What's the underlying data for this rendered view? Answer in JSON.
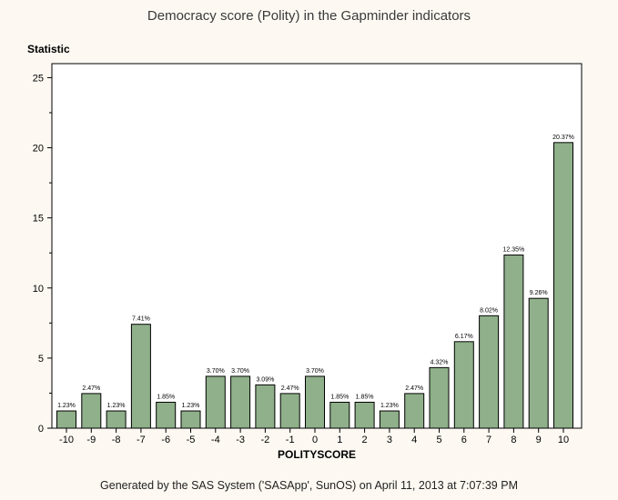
{
  "chart_data": {
    "type": "bar",
    "title": "Democracy score (Polity) in the Gapminder indicators",
    "ylabel": "Statistic",
    "xlabel": "POLITYSCORE",
    "footer": "Generated by the SAS System ('SASApp', SunOS) on April 11, 2013 at 7:07:39 PM",
    "ylim": [
      0,
      26
    ],
    "yticks": [
      0,
      5,
      10,
      15,
      20,
      25
    ],
    "categories": [
      "-10",
      "-9",
      "-8",
      "-7",
      "-6",
      "-5",
      "-4",
      "-3",
      "-2",
      "-1",
      "0",
      "1",
      "2",
      "3",
      "4",
      "5",
      "6",
      "7",
      "8",
      "9",
      "10"
    ],
    "values": [
      1.23,
      2.47,
      1.23,
      7.41,
      1.85,
      1.23,
      3.7,
      3.7,
      3.09,
      2.47,
      3.7,
      1.85,
      1.85,
      1.23,
      2.47,
      4.32,
      6.17,
      8.02,
      12.35,
      9.26,
      20.37
    ],
    "labels": [
      "1.23%",
      "2.47%",
      "1.23%",
      "7.41%",
      "1.85%",
      "1.23%",
      "3.70%",
      "3.70%",
      "3.09%",
      "2.47%",
      "3.70%",
      "1.85%",
      "1.85%",
      "1.23%",
      "2.47%",
      "4.32%",
      "6.17%",
      "8.02%",
      "12.35%",
      "9.26%",
      "20.37%"
    ],
    "colors": {
      "bar": "#8fb08a",
      "bar_edge": "#000000"
    }
  }
}
